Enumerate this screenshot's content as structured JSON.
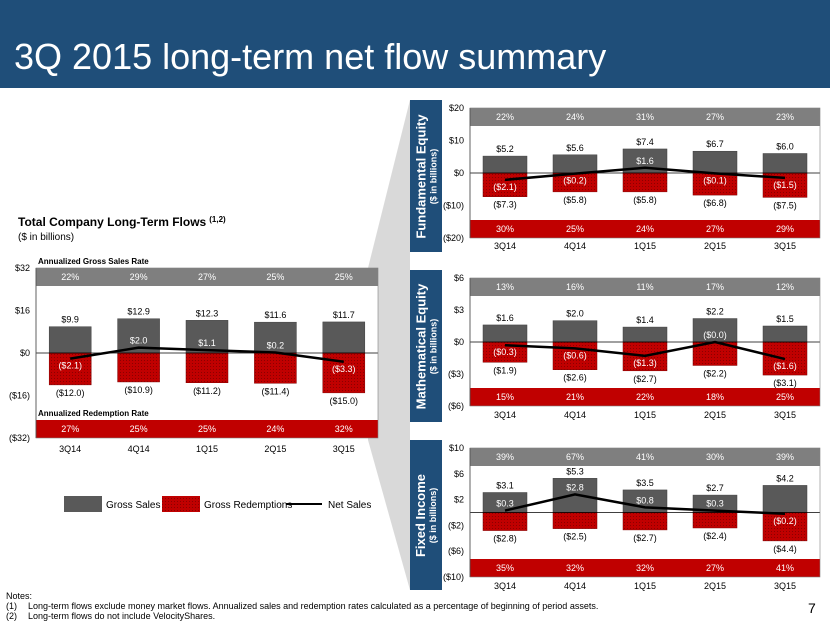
{
  "title": "3Q 2015 long-term net flow summary",
  "page_number": "7",
  "notes": {
    "heading": "Notes:",
    "items": [
      {
        "num": "(1)",
        "text": "Long-term flows exclude money market flows. Annualized sales and redemption rates calculated as a percentage of beginning of period assets."
      },
      {
        "num": "(2)",
        "text": "Long-term flows do not include VelocityShares."
      }
    ]
  },
  "colors": {
    "banner": "#1f4e79",
    "gross_sales": "#595959",
    "gross_redemptions": "#c00000",
    "rate_band": "#7f7f7f",
    "net_sales": "#000000"
  },
  "legend": {
    "gross_sales": "Gross Sales",
    "gross_redemptions": "Gross Redemptions",
    "net_sales": "Net Sales"
  },
  "chart_data": [
    {
      "id": "total",
      "type": "bar",
      "title": "Total Company Long-Term Flows",
      "title_superscript": "(1,2)",
      "subtitle": "($ in billions)",
      "categories": [
        "3Q14",
        "4Q14",
        "1Q15",
        "2Q15",
        "3Q15"
      ],
      "ylim": [
        -32,
        32
      ],
      "yticks": [
        -32,
        -16,
        0,
        16,
        32
      ],
      "ytick_labels": [
        "($32)",
        "($16)",
        "$0",
        "$16",
        "$32"
      ],
      "sales_rate_label": "Annualized Gross Sales Rate",
      "redemption_rate_label": "Annualized Redemption Rate",
      "sales_rate": [
        "22%",
        "29%",
        "27%",
        "25%",
        "25%"
      ],
      "redemption_rate": [
        "27%",
        "25%",
        "25%",
        "24%",
        "32%"
      ],
      "series": [
        {
          "name": "Gross Sales",
          "values": [
            9.9,
            12.9,
            12.3,
            11.6,
            11.7
          ],
          "labels": [
            "$9.9",
            "$12.9",
            "$12.3",
            "$11.6",
            "$11.7"
          ]
        },
        {
          "name": "Gross Redemptions",
          "values": [
            -12.0,
            -10.9,
            -11.2,
            -11.4,
            -15.0
          ],
          "labels": [
            "($12.0)",
            "($10.9)",
            "($11.2)",
            "($11.4)",
            "($15.0)"
          ]
        },
        {
          "name": "Net Sales",
          "values": [
            -2.1,
            2.0,
            1.1,
            0.2,
            -3.3
          ],
          "labels": [
            "($2.1)",
            "$2.0",
            "$1.1",
            "$0.2",
            "($3.3)"
          ]
        }
      ]
    },
    {
      "id": "fundamental",
      "type": "bar",
      "panel_label": "Fundamental Equity",
      "panel_sublabel": "($ in billions)",
      "categories": [
        "3Q14",
        "4Q14",
        "1Q15",
        "2Q15",
        "3Q15"
      ],
      "ylim": [
        -20,
        20
      ],
      "yticks": [
        -20,
        -10,
        0,
        10,
        20
      ],
      "ytick_labels": [
        "($20)",
        "($10)",
        "$0",
        "$10",
        "$20"
      ],
      "sales_rate": [
        "22%",
        "24%",
        "31%",
        "27%",
        "23%"
      ],
      "redemption_rate": [
        "30%",
        "25%",
        "24%",
        "27%",
        "29%"
      ],
      "series": [
        {
          "name": "Gross Sales",
          "values": [
            5.2,
            5.6,
            7.4,
            6.7,
            6.0
          ],
          "labels": [
            "$5.2",
            "$5.6",
            "$7.4",
            "$6.7",
            "$6.0"
          ]
        },
        {
          "name": "Gross Redemptions",
          "values": [
            -7.3,
            -5.8,
            -5.8,
            -6.8,
            -7.5
          ],
          "labels": [
            "($7.3)",
            "($5.8)",
            "($5.8)",
            "($6.8)",
            "($7.5)"
          ]
        },
        {
          "name": "Net Sales",
          "values": [
            -2.1,
            -0.2,
            1.6,
            -0.1,
            -1.5
          ],
          "labels": [
            "($2.1)",
            "($0.2)",
            "$1.6",
            "($0.1)",
            "($1.5)"
          ]
        }
      ]
    },
    {
      "id": "mathematical",
      "type": "bar",
      "panel_label": "Mathematical Equity",
      "panel_sublabel": "($ in billions)",
      "categories": [
        "3Q14",
        "4Q14",
        "1Q15",
        "2Q15",
        "3Q15"
      ],
      "ylim": [
        -6,
        6
      ],
      "yticks": [
        -6,
        -3,
        0,
        3,
        6
      ],
      "ytick_labels": [
        "($6)",
        "($3)",
        "$0",
        "$3",
        "$6"
      ],
      "sales_rate": [
        "13%",
        "16%",
        "11%",
        "17%",
        "12%"
      ],
      "redemption_rate": [
        "15%",
        "21%",
        "22%",
        "18%",
        "25%"
      ],
      "series": [
        {
          "name": "Gross Sales",
          "values": [
            1.6,
            2.0,
            1.4,
            2.2,
            1.5
          ],
          "labels": [
            "$1.6",
            "$2.0",
            "$1.4",
            "$2.2",
            "$1.5"
          ]
        },
        {
          "name": "Gross Redemptions",
          "values": [
            -1.9,
            -2.6,
            -2.7,
            -2.2,
            -3.1
          ],
          "labels": [
            "($1.9)",
            "($2.6)",
            "($2.7)",
            "($2.2)",
            "($3.1)"
          ]
        },
        {
          "name": "Net Sales",
          "values": [
            -0.3,
            -0.6,
            -1.3,
            -0.0,
            -1.6
          ],
          "labels": [
            "($0.3)",
            "($0.6)",
            "($1.3)",
            "($0.0)",
            "($1.6)"
          ]
        }
      ]
    },
    {
      "id": "fixed",
      "type": "bar",
      "panel_label": "Fixed Income",
      "panel_sublabel": "($ in billions)",
      "categories": [
        "3Q14",
        "4Q14",
        "1Q15",
        "2Q15",
        "3Q15"
      ],
      "ylim": [
        -10,
        10
      ],
      "yticks": [
        -10,
        -6,
        -2,
        2,
        6,
        10
      ],
      "ytick_labels": [
        "($10)",
        "($6)",
        "($2)",
        "$2",
        "$6",
        "$10"
      ],
      "sales_rate": [
        "39%",
        "67%",
        "41%",
        "30%",
        "39%"
      ],
      "redemption_rate": [
        "35%",
        "32%",
        "32%",
        "27%",
        "41%"
      ],
      "series": [
        {
          "name": "Gross Sales",
          "values": [
            3.1,
            5.3,
            3.5,
            2.7,
            4.2
          ],
          "labels": [
            "$3.1",
            "$5.3",
            "$3.5",
            "$2.7",
            "$4.2"
          ]
        },
        {
          "name": "Gross Redemptions",
          "values": [
            -2.8,
            -2.5,
            -2.7,
            -2.4,
            -4.4
          ],
          "labels": [
            "($2.8)",
            "($2.5)",
            "($2.7)",
            "($2.4)",
            "($4.4)"
          ]
        },
        {
          "name": "Net Sales",
          "values": [
            0.3,
            2.8,
            0.8,
            0.3,
            -0.2
          ],
          "labels": [
            "$0.3",
            "$2.8",
            "$0.8",
            "$0.3",
            "($0.2)"
          ]
        }
      ]
    }
  ]
}
